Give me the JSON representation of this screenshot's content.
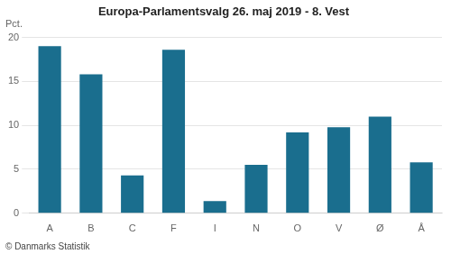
{
  "chart_data": {
    "type": "bar",
    "title": "Europa-Parlamentsvalg 26. maj 2019 - 8. Vest",
    "categories": [
      "A",
      "B",
      "C",
      "F",
      "I",
      "N",
      "O",
      "V",
      "Ø",
      "Å"
    ],
    "values": [
      19.0,
      15.8,
      4.3,
      18.6,
      1.4,
      5.5,
      9.2,
      9.8,
      11.0,
      5.8
    ],
    "color": "#1a6e8e",
    "ylabel": "Pct.",
    "footer": "© Danmarks Statistik",
    "ylim": [
      0,
      20
    ],
    "yticks": [
      0,
      5,
      10,
      15,
      20
    ],
    "grid": true
  }
}
